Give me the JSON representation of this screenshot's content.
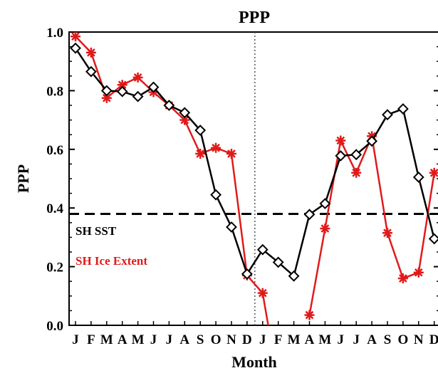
{
  "chart_data": {
    "type": "line",
    "title": "PPP",
    "xlabel": "Month",
    "ylabel": "PPP",
    "ylim": [
      0.0,
      1.0
    ],
    "yticks": [
      "0.0",
      "0.2",
      "0.4",
      "0.6",
      "0.8",
      "1.0"
    ],
    "categories": [
      "J",
      "F",
      "M",
      "A",
      "M",
      "J",
      "J",
      "A",
      "S",
      "O",
      "N",
      "D",
      "J",
      "F",
      "M",
      "A",
      "M",
      "J",
      "J",
      "A",
      "S",
      "O",
      "N",
      "D"
    ],
    "threshold": 0.38,
    "series": [
      {
        "name": "SH SST",
        "color": "#000000",
        "marker": "diamond",
        "values": [
          0.945,
          0.865,
          0.8,
          0.797,
          0.78,
          0.812,
          0.75,
          0.725,
          0.665,
          0.445,
          0.335,
          0.175,
          0.258,
          0.215,
          0.168,
          0.378,
          0.415,
          0.578,
          0.582,
          0.628,
          0.718,
          0.738,
          0.505,
          0.295
        ]
      },
      {
        "name": "SH Ice Extent",
        "color": "#e11a1a",
        "marker": "asterisk",
        "values": [
          0.985,
          0.93,
          0.775,
          0.82,
          0.845,
          0.795,
          0.75,
          0.7,
          0.585,
          0.605,
          0.585,
          0.17,
          0.11,
          -0.2,
          null,
          0.035,
          0.33,
          0.63,
          0.52,
          0.645,
          0.315,
          0.16,
          0.18,
          0.52
        ]
      }
    ],
    "vertical_marker_between": [
      11,
      12
    ]
  }
}
